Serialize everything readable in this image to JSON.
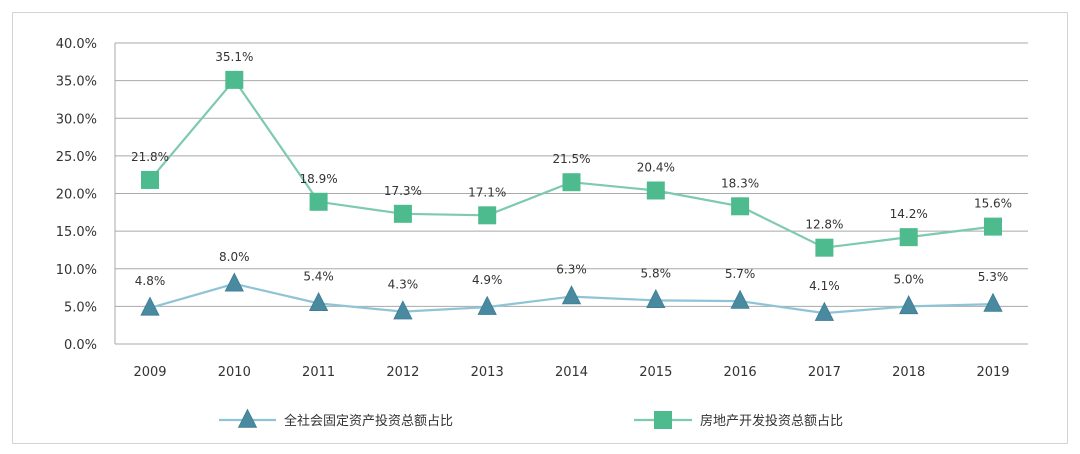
{
  "chart_data": {
    "type": "line",
    "categories": [
      "2009",
      "2010",
      "2011",
      "2012",
      "2013",
      "2014",
      "2015",
      "2016",
      "2017",
      "2018",
      "2019"
    ],
    "ylim": [
      0,
      40
    ],
    "yticks": [
      "0.0%",
      "5.0%",
      "10.0%",
      "15.0%",
      "20.0%",
      "25.0%",
      "30.0%",
      "35.0%",
      "40.0%"
    ],
    "grid": true,
    "legend_position": "bottom",
    "series": [
      {
        "name": "全社会固定资产投资总额占比",
        "marker": "triangle",
        "color": "#8fc4d6",
        "marker_color": "#4a8aa0",
        "values": [
          4.8,
          8.0,
          5.4,
          4.3,
          4.9,
          6.3,
          5.8,
          5.7,
          4.1,
          5.0,
          5.3
        ],
        "labels": [
          "4.8%",
          "8.0%",
          "5.4%",
          "4.3%",
          "4.9%",
          "6.3%",
          "5.8%",
          "5.7%",
          "4.1%",
          "5.0%",
          "5.3%"
        ]
      },
      {
        "name": "房地产开发投资总额占比",
        "marker": "square",
        "color": "#7dcaae",
        "marker_color": "#4dbb8e",
        "values": [
          21.8,
          35.1,
          18.9,
          17.3,
          17.1,
          21.5,
          20.4,
          18.3,
          12.8,
          14.2,
          15.6
        ],
        "labels": [
          "21.8%",
          "35.1%",
          "18.9%",
          "17.3%",
          "17.1%",
          "21.5%",
          "20.4%",
          "18.3%",
          "12.8%",
          "14.2%",
          "15.6%"
        ]
      }
    ]
  }
}
